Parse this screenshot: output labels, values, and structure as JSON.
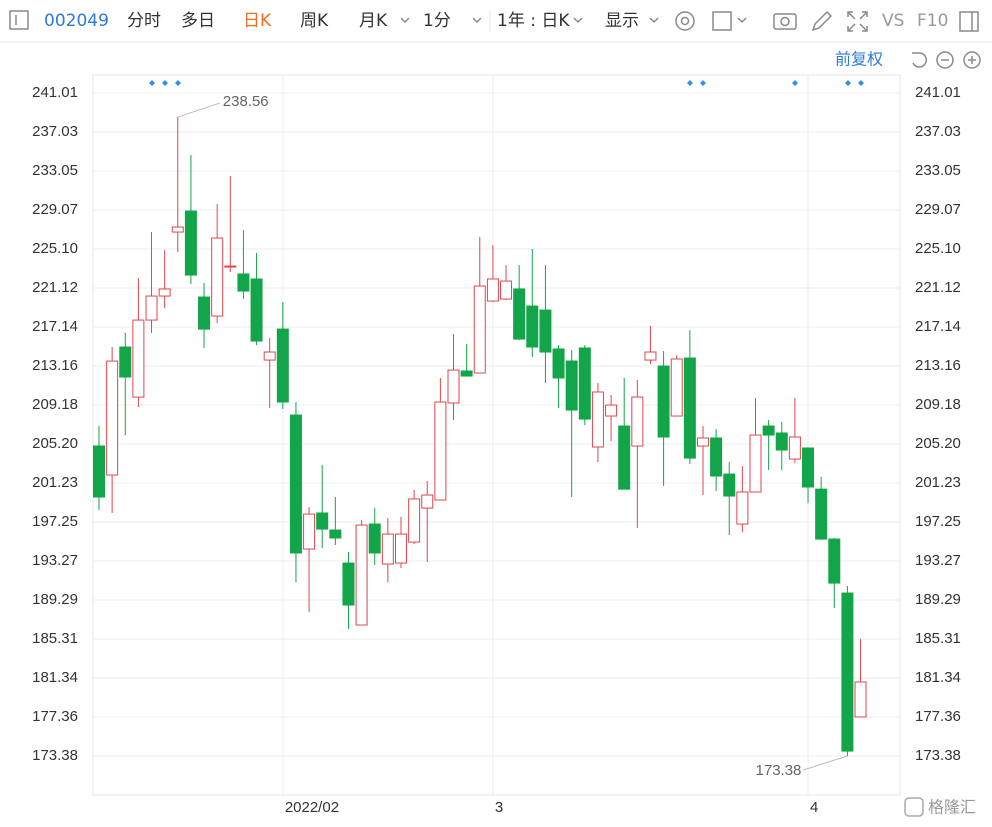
{
  "toolbar": {
    "code": "002049",
    "tabs": [
      "分时",
      "多日",
      "日K",
      "周K",
      "月K",
      "1分",
      "1年 : 日K",
      "显示"
    ],
    "vs": "VS",
    "f10": "F10",
    "adjust": "前复权"
  },
  "watermark": "格隆汇",
  "chart_data": {
    "type": "candlestick",
    "categories": [
      null,
      null,
      null,
      null,
      null,
      null,
      null,
      null,
      null,
      null,
      null,
      null,
      null,
      null,
      "2022/02",
      null,
      null,
      null,
      null,
      null,
      null,
      null,
      null,
      null,
      null,
      null,
      null,
      null,
      null,
      null,
      "3",
      null,
      null,
      null,
      null,
      null,
      null,
      null,
      null,
      null,
      null,
      null,
      null,
      null,
      null,
      null,
      null,
      null,
      null,
      null,
      null,
      null,
      null,
      null,
      "4",
      null,
      null,
      null,
      null
    ],
    "open": [
      205.0,
      202.04,
      215.1,
      209.99,
      217.85,
      220.3,
      226.83,
      228.97,
      220.2,
      218.26,
      223.26,
      222.55,
      222.04,
      213.77,
      216.93,
      208.16,
      194.49,
      198.17,
      196.43,
      193.06,
      186.74,
      197.04,
      192.96,
      193.06,
      195.2,
      198.67,
      199.49,
      209.39,
      212.65,
      212.45,
      219.79,
      219.99,
      221.02,
      219.28,
      218.87,
      214.9,
      213.67,
      215.0,
      204.9,
      208.06,
      207.04,
      205.0,
      213.77,
      213.16,
      208.06,
      213.98,
      205.0,
      205.82,
      202.14,
      197.04,
      200.31,
      207.04,
      206.33,
      203.67,
      204.8,
      200.6,
      195.51,
      190.0,
      177.36
    ],
    "high": [
      207.04,
      215.1,
      216.53,
      222.14,
      226.83,
      224.99,
      238.56,
      234.69,
      221.63,
      229.69,
      232.54,
      227.03,
      224.69,
      216.02,
      219.69,
      209.49,
      198.78,
      203.06,
      199.8,
      194.19,
      197.45,
      198.68,
      197.66,
      197.76,
      200.51,
      201.43,
      211.94,
      216.42,
      215.4,
      226.32,
      225.5,
      223.46,
      223.46,
      225.1,
      223.46,
      215.3,
      214.79,
      215.3,
      211.43,
      210.2,
      211.94,
      211.74,
      217.24,
      214.69,
      214.28,
      216.83,
      207.04,
      206.73,
      203.37,
      202.96,
      209.9,
      207.65,
      207.45,
      209.9,
      204.8,
      201.84,
      195.61,
      190.72,
      185.31
    ],
    "low": [
      198.47,
      198.17,
      206.12,
      208.98,
      216.53,
      219.08,
      224.79,
      221.53,
      214.99,
      217.55,
      222.75,
      220.0,
      215.3,
      208.88,
      208.78,
      191.1,
      188.07,
      194.6,
      194.9,
      186.33,
      186.74,
      192.86,
      191.1,
      192.55,
      195.0,
      193.17,
      199.49,
      207.65,
      212.14,
      212.45,
      219.69,
      219.89,
      215.81,
      214.08,
      211.43,
      208.88,
      199.8,
      207.14,
      203.37,
      205.5,
      200.6,
      196.63,
      213.36,
      200.92,
      208.06,
      203.16,
      200.0,
      200.41,
      195.92,
      196.22,
      200.31,
      202.55,
      202.55,
      203.26,
      199.18,
      195.41,
      188.47,
      173.38,
      177.36
    ],
    "close": [
      199.8,
      213.67,
      212.04,
      217.85,
      220.3,
      221.02,
      227.34,
      222.44,
      216.93,
      226.22,
      223.36,
      220.81,
      215.71,
      214.59,
      209.49,
      194.09,
      198.06,
      196.53,
      195.62,
      188.78,
      196.94,
      194.09,
      196.02,
      196.02,
      199.6,
      200.0,
      209.49,
      212.75,
      212.14,
      221.32,
      222.04,
      221.83,
      215.91,
      215.1,
      214.59,
      211.94,
      208.67,
      207.75,
      210.51,
      209.18,
      200.6,
      210.0,
      214.59,
      205.92,
      213.88,
      203.77,
      205.82,
      201.94,
      199.9,
      200.31,
      206.12,
      206.12,
      204.59,
      205.92,
      200.82,
      195.51,
      191.02,
      173.88,
      180.93
    ],
    "up_color": "#e0474c",
    "down_color": "#13a54a",
    "ylim": [
      169.4,
      242.85
    ],
    "yticks": [
      241.01,
      237.03,
      233.05,
      229.07,
      {
        "value": 225.1,
        "label": "225.10"
      },
      221.12,
      217.14,
      213.16,
      209.18,
      {
        "value": 205.2,
        "label": "205.20"
      },
      201.23,
      197.25,
      193.27,
      189.29,
      185.31,
      181.34,
      177.36,
      173.38
    ],
    "grid": true
  }
}
